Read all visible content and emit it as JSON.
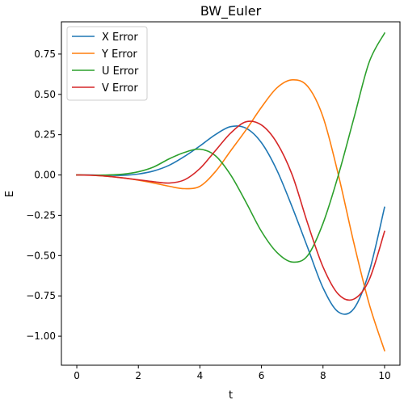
{
  "chart_data": {
    "type": "line",
    "title": "BW_Euler",
    "xlabel": "t",
    "ylabel": "E",
    "xlim": [
      -0.5,
      10.5
    ],
    "ylim": [
      -1.18,
      0.95
    ],
    "xticks": [
      0,
      2,
      4,
      6,
      8,
      10
    ],
    "xtick_labels": [
      "0",
      "2",
      "4",
      "6",
      "8",
      "10"
    ],
    "yticks": [
      -1.0,
      -0.75,
      -0.5,
      -0.25,
      0.0,
      0.25,
      0.5,
      0.75
    ],
    "ytick_labels": [
      "−1.00",
      "−0.75",
      "−0.50",
      "−0.25",
      "0.00",
      "0.25",
      "0.50",
      "0.75"
    ],
    "grid": false,
    "legend_position": "top-left",
    "x": [
      0,
      0.5,
      1,
      1.5,
      2,
      2.5,
      3,
      3.5,
      4,
      4.5,
      5,
      5.5,
      6,
      6.5,
      7,
      7.5,
      8,
      8.5,
      9,
      9.5,
      10
    ],
    "series": [
      {
        "name": "X Error",
        "color": "#1f77b4",
        "values": [
          0.0,
          0.0,
          -0.002,
          -0.002,
          0.006,
          0.025,
          0.06,
          0.115,
          0.18,
          0.25,
          0.3,
          0.29,
          0.2,
          0.03,
          -0.2,
          -0.45,
          -0.7,
          -0.85,
          -0.83,
          -0.6,
          -0.2
        ]
      },
      {
        "name": "Y Error",
        "color": "#ff7f0e",
        "values": [
          0.0,
          -0.002,
          -0.008,
          -0.018,
          -0.032,
          -0.05,
          -0.07,
          -0.085,
          -0.07,
          0.02,
          0.15,
          0.28,
          0.42,
          0.54,
          0.59,
          0.55,
          0.36,
          0.0,
          -0.42,
          -0.8,
          -1.09
        ]
      },
      {
        "name": "U Error",
        "color": "#2ca02c",
        "values": [
          0.0,
          -0.001,
          0.0,
          0.005,
          0.02,
          0.05,
          0.1,
          0.14,
          0.16,
          0.12,
          0.0,
          -0.17,
          -0.35,
          -0.48,
          -0.54,
          -0.5,
          -0.3,
          0.0,
          0.35,
          0.7,
          0.88
        ]
      },
      {
        "name": "V Error",
        "color": "#d62728",
        "values": [
          0.0,
          -0.002,
          -0.008,
          -0.018,
          -0.03,
          -0.042,
          -0.05,
          -0.03,
          0.04,
          0.15,
          0.26,
          0.33,
          0.31,
          0.2,
          0.0,
          -0.3,
          -0.57,
          -0.74,
          -0.77,
          -0.65,
          -0.35
        ]
      }
    ]
  }
}
